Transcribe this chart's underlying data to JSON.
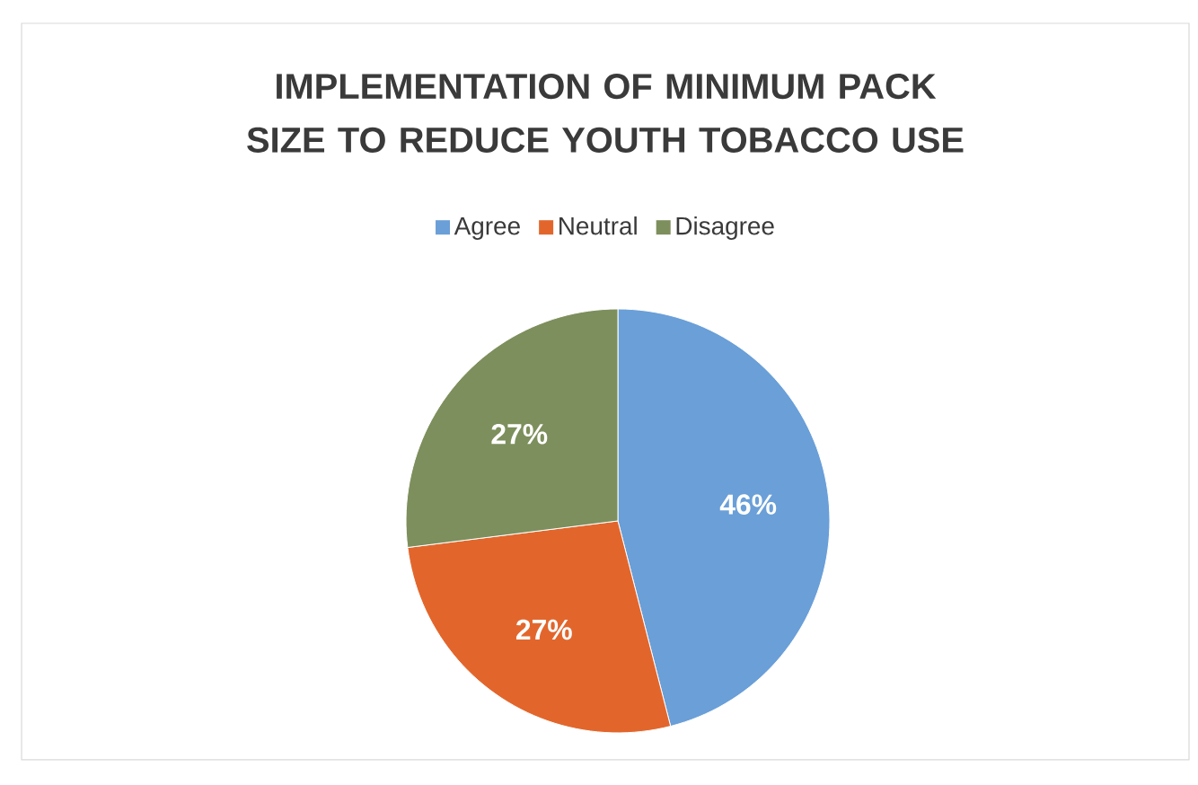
{
  "chart_data": {
    "type": "pie",
    "title": "IMPLEMENTATION OF MINIMUM PACK SIZE TO REDUCE YOUTH TOBACCO USE",
    "categories": [
      "Agree",
      "Neutral",
      "Disagree"
    ],
    "values": [
      46,
      27,
      27
    ],
    "value_labels": [
      "46%",
      "27%",
      "27%"
    ],
    "colors": [
      "#6a9fd8",
      "#e2662c",
      "#7d8f5c"
    ],
    "legend": "top"
  }
}
